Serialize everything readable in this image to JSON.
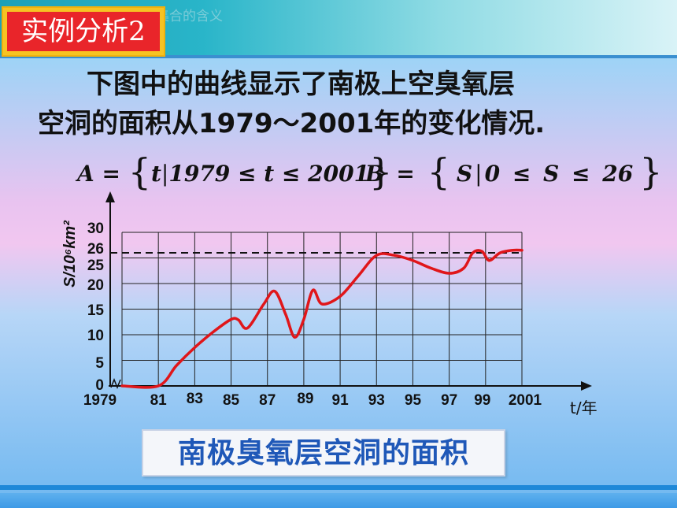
{
  "header": {
    "badge": "实例分析2",
    "ghost_text": "集合的含义"
  },
  "paragraph": {
    "line1": "下图中的曲线显示了南极上空臭氧层",
    "line2": "空洞的面积从1979～2001年的变化情况."
  },
  "formulas": {
    "A": {
      "name": "A",
      "eq": "=",
      "open": "{",
      "var": "t",
      "bar": "|",
      "cond": "1979 ≤ t ≤ 2001",
      "close": "}"
    },
    "B": {
      "name": "B",
      "eq": "=",
      "open": "{",
      "var": "S",
      "bar": "|",
      "cond": "0 ≤ S ≤ 26",
      "close": "}"
    }
  },
  "caption": "南极臭氧层空洞的面积",
  "chart_data": {
    "type": "line",
    "title": "",
    "xlabel": "t/年",
    "ylabel": "S/10⁶km²",
    "x_ticks": [
      "1979",
      "81",
      "83",
      "85",
      "87",
      "89",
      "91",
      "93",
      "95",
      "97",
      "99",
      "2001"
    ],
    "y_ticks": [
      "0",
      "5",
      "10",
      "15",
      "20",
      "25",
      "26",
      "30"
    ],
    "xlim": [
      1979,
      2001
    ],
    "ylim": [
      0,
      30
    ],
    "grid": true,
    "reference_line": {
      "y": 26,
      "style": "dashed"
    },
    "series": [
      {
        "color": "#e0161a",
        "x": [
          1979,
          1981,
          1982,
          1983,
          1984,
          1985,
          1985.4,
          1985.9,
          1986.8,
          1987.4,
          1988,
          1988.5,
          1989,
          1989.5,
          1990,
          1991,
          1992,
          1993,
          1994,
          1995,
          1996,
          1997,
          1997.8,
          1998.3,
          1998.8,
          1999.2,
          1999.8,
          2000.5,
          2001
        ],
        "y": [
          0,
          0,
          4,
          7.5,
          10.5,
          13,
          12.9,
          11.3,
          16,
          18.5,
          14,
          9.5,
          13,
          18.7,
          16,
          17.5,
          21.5,
          25.5,
          25.5,
          24.5,
          23,
          22,
          23,
          26,
          26.3,
          24.5,
          26,
          26.5,
          26.5
        ]
      }
    ]
  },
  "colors": {
    "curve": "#e0161a",
    "title_bg": "#e9252a",
    "title_border": "#f6c323",
    "caption_text": "#1f58b8"
  }
}
